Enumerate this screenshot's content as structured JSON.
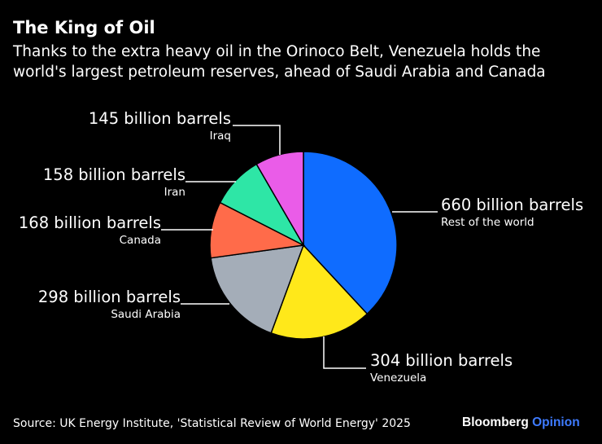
{
  "header": {
    "title": "The King of Oil",
    "subtitle": "Thanks to the extra heavy oil in the Orinoco Belt, Venezuela holds the world's largest petroleum reserves, ahead of Saudi Arabia and Canada"
  },
  "chart_data": {
    "type": "pie",
    "title": "The King of Oil",
    "unit": "billion barrels",
    "slices": [
      {
        "name": "Rest of the world",
        "value": 660,
        "label": "660 billion barrels",
        "color": "#0f6cff"
      },
      {
        "name": "Venezuela",
        "value": 304,
        "label": "304 billion barrels",
        "color": "#ffe81a"
      },
      {
        "name": "Saudi Arabia",
        "value": 298,
        "label": "298 billion barrels",
        "color": "#a4adb8"
      },
      {
        "name": "Canada",
        "value": 168,
        "label": "168 billion barrels",
        "color": "#ff6b4a"
      },
      {
        "name": "Iran",
        "value": 158,
        "label": "158 billion barrels",
        "color": "#2ee6a6"
      },
      {
        "name": "Iraq",
        "value": 145,
        "label": "145 billion barrels",
        "color": "#ea5ce8"
      }
    ]
  },
  "footer": {
    "source": "Source: UK Energy Institute, 'Statistical Review of World Energy' 2025",
    "brand_main": "Bloomberg",
    "brand_accent": "Opinion"
  }
}
